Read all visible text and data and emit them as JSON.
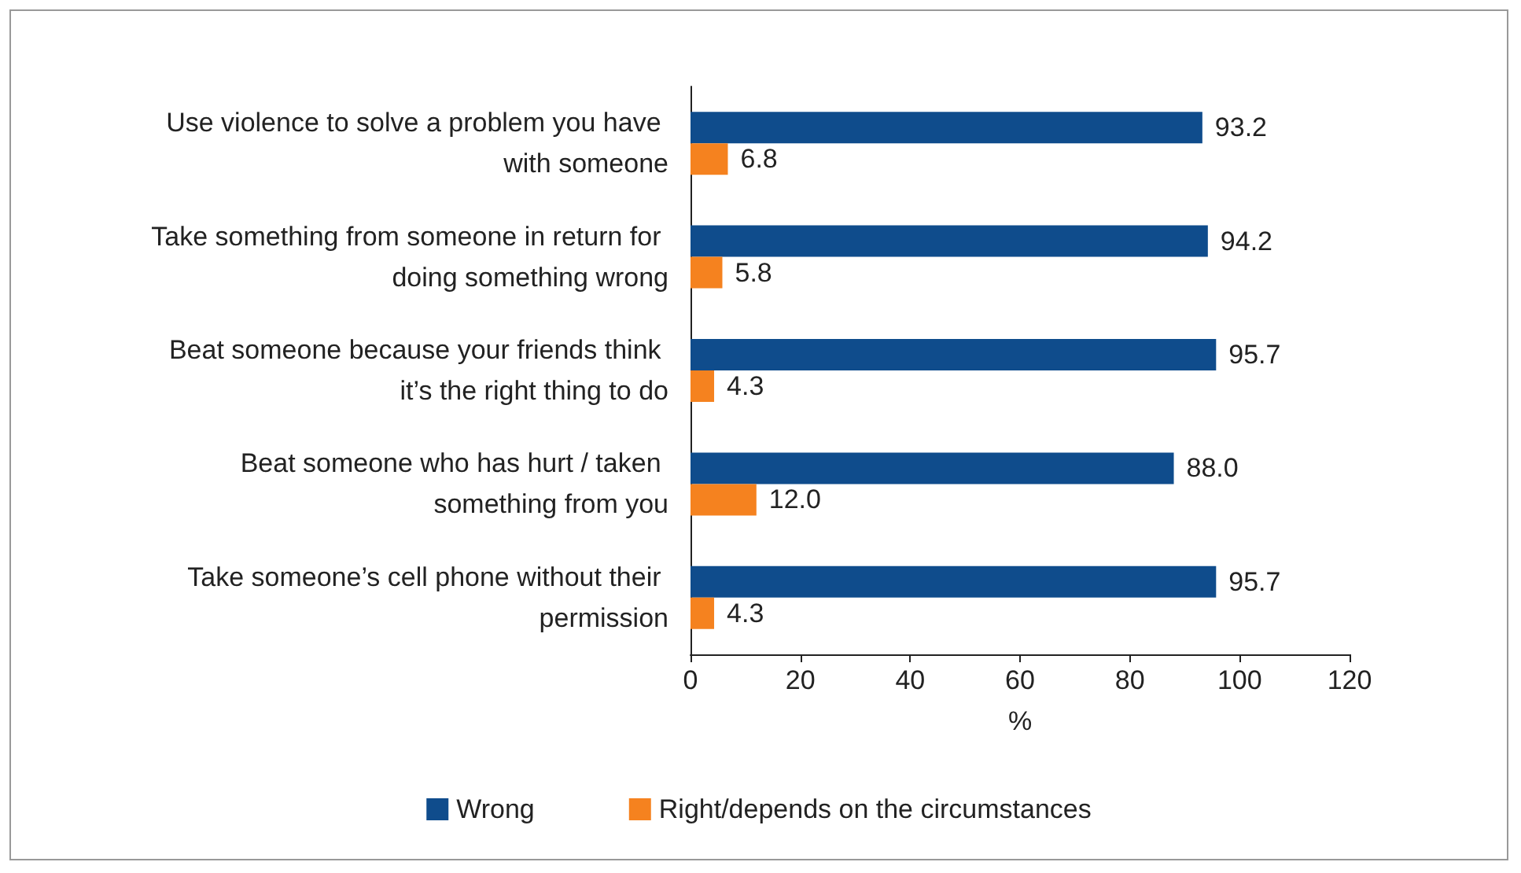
{
  "chart_data": {
    "type": "bar",
    "orientation": "horizontal",
    "xlabel": "%",
    "categories": [
      "Use violence to solve a problem you have with someone",
      "Take something from someone in return for doing something wrong",
      "Beat someone because your friends think it’s the right thing to do",
      "Beat someone who has hurt / taken something from you",
      "Take someone’s cell phone without their permission"
    ],
    "series": [
      {
        "name": "Wrong",
        "color": "#0f4c8c",
        "values": [
          93.2,
          94.2,
          95.7,
          88.0,
          95.7
        ]
      },
      {
        "name": "Right/depends on the circumstances",
        "color": "#f5821f",
        "values": [
          6.8,
          5.8,
          4.3,
          12.0,
          4.3
        ]
      }
    ],
    "value_labels": [
      [
        "93.2",
        "94.2",
        "95.7",
        "88.0",
        "95.7"
      ],
      [
        "6.8",
        "5.8",
        "4.3",
        "12.0",
        "4.3"
      ]
    ],
    "xlim": [
      0,
      120
    ],
    "xticks": [
      0,
      20,
      40,
      60,
      80,
      100,
      120
    ],
    "grid": false,
    "legend": "bottom"
  }
}
